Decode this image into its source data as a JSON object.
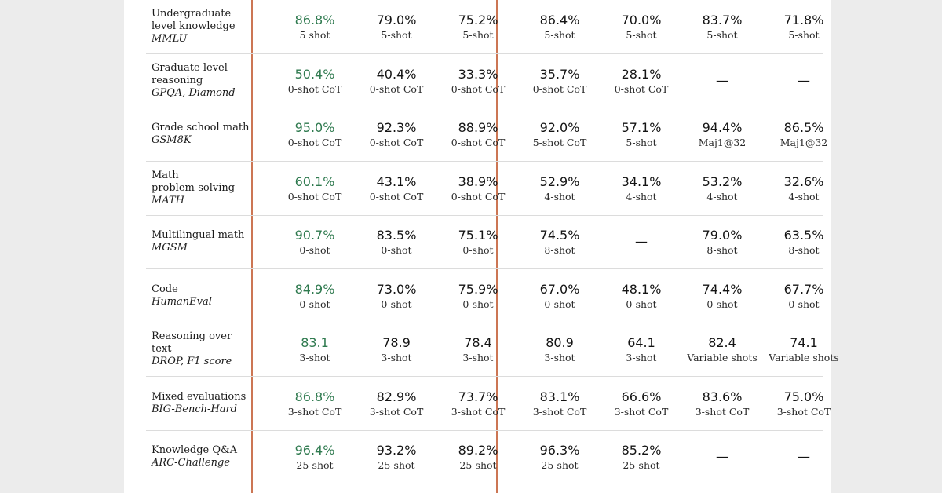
{
  "table": {
    "rows": [
      {
        "label": "Undergraduate\nlevel knowledge",
        "benchmark": "MMLU",
        "cells": [
          {
            "value": "86.8%",
            "shot": "5 shot"
          },
          {
            "value": "79.0%",
            "shot": "5-shot"
          },
          {
            "value": "75.2%",
            "shot": "5-shot"
          },
          {
            "value": "86.4%",
            "shot": "5-shot"
          },
          {
            "value": "70.0%",
            "shot": "5-shot"
          },
          {
            "value": "83.7%",
            "shot": "5-shot"
          },
          {
            "value": "71.8%",
            "shot": "5-shot"
          }
        ]
      },
      {
        "label": "Graduate level\nreasoning",
        "benchmark": "GPQA, Diamond",
        "cells": [
          {
            "value": "50.4%",
            "shot": "0-shot CoT"
          },
          {
            "value": "40.4%",
            "shot": "0-shot CoT"
          },
          {
            "value": "33.3%",
            "shot": "0-shot CoT"
          },
          {
            "value": "35.7%",
            "shot": "0-shot CoT"
          },
          {
            "value": "28.1%",
            "shot": "0-shot CoT"
          },
          {
            "value": "—",
            "shot": ""
          },
          {
            "value": "—",
            "shot": ""
          }
        ]
      },
      {
        "label": "Grade school math",
        "benchmark": "GSM8K",
        "cells": [
          {
            "value": "95.0%",
            "shot": "0-shot CoT"
          },
          {
            "value": "92.3%",
            "shot": "0-shot CoT"
          },
          {
            "value": "88.9%",
            "shot": "0-shot CoT"
          },
          {
            "value": "92.0%",
            "shot": "5-shot CoT"
          },
          {
            "value": "57.1%",
            "shot": "5-shot"
          },
          {
            "value": "94.4%",
            "shot": "Maj1@32"
          },
          {
            "value": "86.5%",
            "shot": "Maj1@32"
          }
        ]
      },
      {
        "label": "Math\nproblem-solving",
        "benchmark": "MATH",
        "cells": [
          {
            "value": "60.1%",
            "shot": "0-shot CoT"
          },
          {
            "value": "43.1%",
            "shot": "0-shot CoT"
          },
          {
            "value": "38.9%",
            "shot": "0-shot CoT"
          },
          {
            "value": "52.9%",
            "shot": "4-shot"
          },
          {
            "value": "34.1%",
            "shot": "4-shot"
          },
          {
            "value": "53.2%",
            "shot": "4-shot"
          },
          {
            "value": "32.6%",
            "shot": "4-shot"
          }
        ]
      },
      {
        "label": "Multilingual math",
        "benchmark": "MGSM",
        "cells": [
          {
            "value": "90.7%",
            "shot": "0-shot"
          },
          {
            "value": "83.5%",
            "shot": "0-shot"
          },
          {
            "value": "75.1%",
            "shot": "0-shot"
          },
          {
            "value": "74.5%",
            "shot": "8-shot"
          },
          {
            "value": "—",
            "shot": ""
          },
          {
            "value": "79.0%",
            "shot": "8-shot"
          },
          {
            "value": "63.5%",
            "shot": "8-shot"
          }
        ]
      },
      {
        "label": "Code",
        "benchmark": "HumanEval",
        "cells": [
          {
            "value": "84.9%",
            "shot": "0-shot"
          },
          {
            "value": "73.0%",
            "shot": "0-shot"
          },
          {
            "value": "75.9%",
            "shot": "0-shot"
          },
          {
            "value": "67.0%",
            "shot": "0-shot"
          },
          {
            "value": "48.1%",
            "shot": "0-shot"
          },
          {
            "value": "74.4%",
            "shot": "0-shot"
          },
          {
            "value": "67.7%",
            "shot": "0-shot"
          }
        ]
      },
      {
        "label": "Reasoning over text",
        "benchmark": "DROP, F1 score",
        "cells": [
          {
            "value": "83.1",
            "shot": "3-shot"
          },
          {
            "value": "78.9",
            "shot": "3-shot"
          },
          {
            "value": "78.4",
            "shot": "3-shot"
          },
          {
            "value": "80.9",
            "shot": "3-shot"
          },
          {
            "value": "64.1",
            "shot": "3-shot"
          },
          {
            "value": "82.4",
            "shot": "Variable shots"
          },
          {
            "value": "74.1",
            "shot": "Variable shots"
          }
        ]
      },
      {
        "label": "Mixed evaluations",
        "benchmark": "BIG-Bench-Hard",
        "cells": [
          {
            "value": "86.8%",
            "shot": "3-shot CoT"
          },
          {
            "value": "82.9%",
            "shot": "3-shot CoT"
          },
          {
            "value": "73.7%",
            "shot": "3-shot CoT"
          },
          {
            "value": "83.1%",
            "shot": "3-shot CoT"
          },
          {
            "value": "66.6%",
            "shot": "3-shot CoT"
          },
          {
            "value": "83.6%",
            "shot": "3-shot CoT"
          },
          {
            "value": "75.0%",
            "shot": "3-shot CoT"
          }
        ]
      },
      {
        "label": "Knowledge Q&A",
        "benchmark": "ARC-Challenge",
        "cells": [
          {
            "value": "96.4%",
            "shot": "25-shot"
          },
          {
            "value": "93.2%",
            "shot": "25-shot"
          },
          {
            "value": "89.2%",
            "shot": "25-shot"
          },
          {
            "value": "96.3%",
            "shot": "25-shot"
          },
          {
            "value": "85.2%",
            "shot": "25-shot"
          },
          {
            "value": "—",
            "shot": ""
          },
          {
            "value": "—",
            "shot": ""
          }
        ]
      }
    ]
  },
  "colors": {
    "highlight": "#2f7a4f",
    "divider": "#cc7654",
    "background": "#ececec",
    "sheet": "#ffffff",
    "rule": "#dcdcdc"
  }
}
